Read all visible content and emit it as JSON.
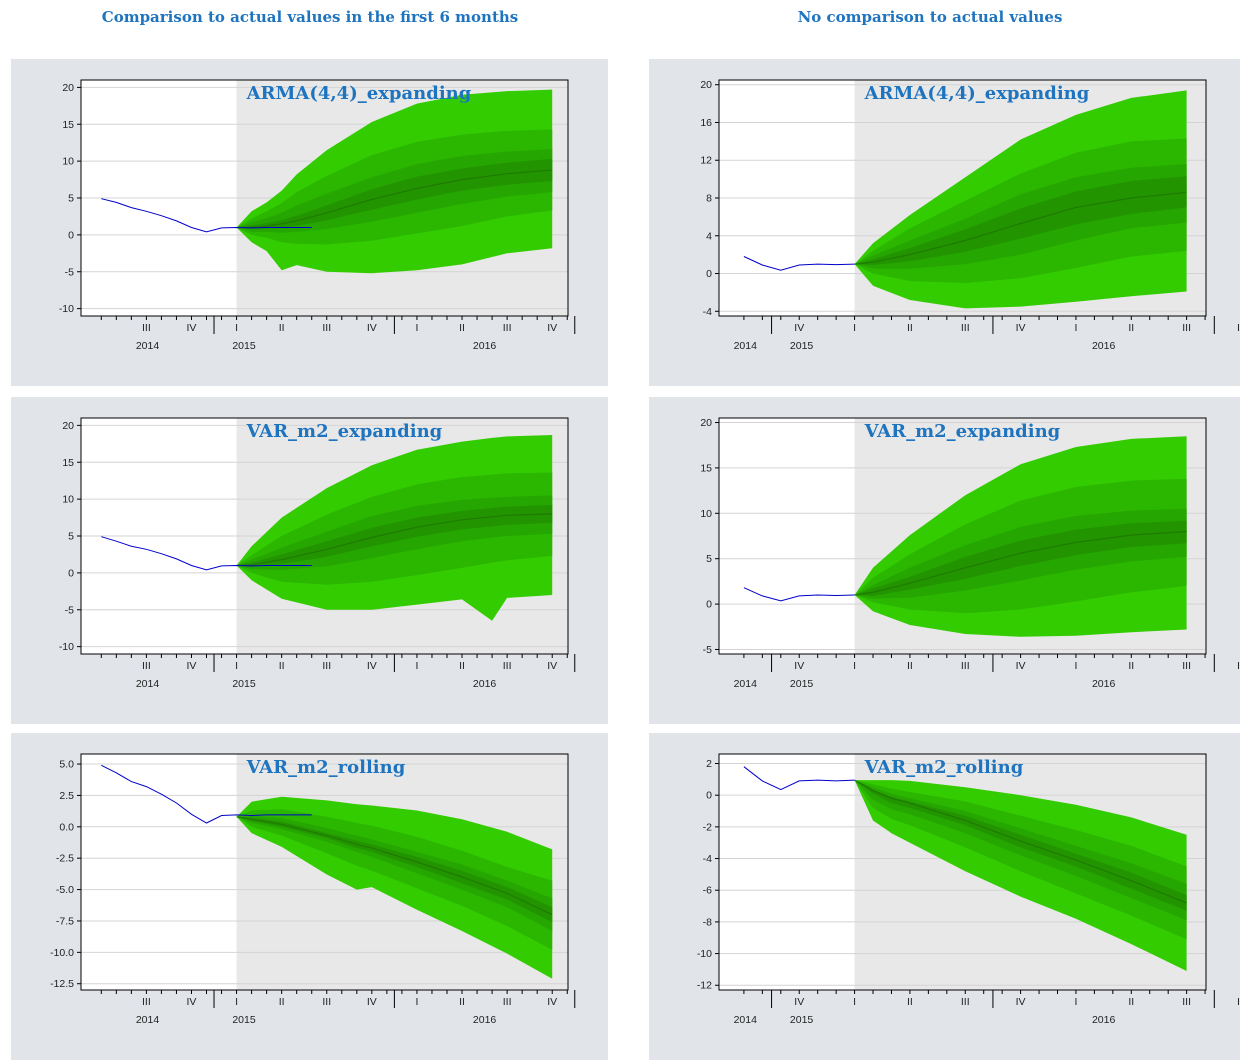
{
  "column_titles": {
    "left": "Comparison to actual values in the first 6 months",
    "right": "No comparison to actual values"
  },
  "colors": {
    "panel_bg": "#e1e5ea",
    "forecast_bg": "#e8e8e8",
    "fan_bands": [
      "#33cc00",
      "#2bb600",
      "#26a600",
      "#229400"
    ],
    "median": "#1f7a00",
    "actual_line": "#0000cc",
    "title": "#1f74c0"
  },
  "chart_data": [
    {
      "id": "left-arma",
      "type": "area",
      "title": "ARMA(4,4)_expanding",
      "x_start": "2014-II",
      "forecast_start": "2014-IV",
      "quarters_shown": 11,
      "quarter_ticks": [
        "III",
        "IV",
        "I",
        "II",
        "III",
        "IV",
        "I",
        "II",
        "III",
        "IV"
      ],
      "year_labels": [
        "2014",
        "2015",
        "2016"
      ],
      "ylim": [
        -11,
        21
      ],
      "yticks": [
        -10,
        -5,
        0,
        5,
        10,
        15,
        20
      ],
      "actual_x": [
        0,
        0.333,
        0.667,
        1,
        1.333,
        1.667,
        2,
        2.333,
        2.667,
        3,
        3.333,
        3.667,
        4,
        4.333,
        4.667
      ],
      "actual_y": [
        4.9,
        4.4,
        3.7,
        3.2,
        2.6,
        1.9,
        1.0,
        0.4,
        0.95,
        1.0,
        0.95,
        1.0,
        1.0,
        1.0,
        1.0
      ],
      "fan_x": [
        3,
        3.333,
        3.667,
        4,
        4.333,
        5,
        6,
        7,
        8,
        9,
        10
      ],
      "median": [
        1.0,
        1.0,
        1.2,
        1.5,
        1.9,
        3.0,
        4.8,
        6.3,
        7.5,
        8.3,
        8.8
      ],
      "bands": [
        {
          "lower": [
            1.0,
            -1.0,
            -2.2,
            -4.8,
            -4.1,
            -5.0,
            -5.2,
            -4.8,
            -4.0,
            -2.5,
            -1.8
          ],
          "upper": [
            1.0,
            3.2,
            4.4,
            6.0,
            8.2,
            11.5,
            15.3,
            17.8,
            19.0,
            19.5,
            19.7
          ]
        },
        {
          "lower": [
            1.0,
            0.0,
            -0.4,
            -1.0,
            -1.2,
            -1.3,
            -0.8,
            0.2,
            1.2,
            2.5,
            3.3
          ],
          "upper": [
            1.0,
            2.2,
            3.2,
            4.3,
            5.8,
            8.0,
            10.8,
            12.6,
            13.6,
            14.1,
            14.3
          ]
        },
        {
          "lower": [
            1.0,
            0.4,
            0.4,
            0.3,
            0.4,
            0.8,
            1.8,
            3.0,
            4.2,
            5.2,
            5.8
          ],
          "upper": [
            1.0,
            1.7,
            2.3,
            3.0,
            4.0,
            5.6,
            7.8,
            9.6,
            10.7,
            11.3,
            11.6
          ]
        },
        {
          "lower": [
            1.0,
            0.8,
            0.9,
            1.0,
            1.2,
            2.0,
            3.4,
            4.8,
            6.0,
            6.8,
            7.3
          ],
          "upper": [
            1.0,
            1.3,
            1.6,
            2.0,
            2.6,
            4.0,
            6.2,
            7.9,
            9.0,
            9.8,
            10.3
          ]
        }
      ]
    },
    {
      "id": "right-arma",
      "type": "area",
      "title": "ARMA(4,4)_expanding",
      "x_start": "2014-IV",
      "forecast_start": "2015-II",
      "quarters_shown": 9,
      "quarter_ticks": [
        "IV",
        "I",
        "II",
        "III",
        "IV",
        "I",
        "II",
        "III",
        "IV"
      ],
      "year_labels": [
        "2014",
        "2015",
        "2016"
      ],
      "ylim": [
        -4.5,
        20.5
      ],
      "yticks": [
        -4,
        0,
        4,
        8,
        12,
        16,
        20
      ],
      "actual_x": [
        0,
        0.333,
        0.667,
        1,
        1.333,
        1.667,
        2
      ],
      "actual_y": [
        1.8,
        0.9,
        0.35,
        0.9,
        1.0,
        0.95,
        1.0
      ],
      "fan_x": [
        2,
        2.333,
        3,
        4,
        5,
        6,
        7,
        8
      ],
      "median": [
        1.0,
        1.2,
        2.0,
        3.5,
        5.3,
        7.0,
        8.0,
        8.6
      ],
      "bands": [
        {
          "lower": [
            1.0,
            -1.3,
            -2.8,
            -3.7,
            -3.5,
            -3.0,
            -2.4,
            -1.9
          ],
          "upper": [
            1.0,
            3.2,
            6.2,
            10.2,
            14.2,
            16.8,
            18.6,
            19.4
          ]
        },
        {
          "lower": [
            1.0,
            0.0,
            -0.8,
            -1.0,
            -0.5,
            0.6,
            1.8,
            2.4
          ],
          "upper": [
            1.0,
            2.4,
            4.8,
            7.7,
            10.6,
            12.8,
            14.0,
            14.3
          ]
        },
        {
          "lower": [
            1.0,
            0.5,
            0.5,
            1.0,
            2.0,
            3.5,
            4.8,
            5.4
          ],
          "upper": [
            1.0,
            1.9,
            3.5,
            5.8,
            8.4,
            10.2,
            11.2,
            11.6
          ]
        },
        {
          "lower": [
            1.0,
            0.9,
            1.3,
            2.3,
            3.7,
            5.2,
            6.3,
            7.0
          ],
          "upper": [
            1.0,
            1.5,
            2.7,
            4.7,
            6.9,
            8.7,
            9.8,
            10.3
          ]
        }
      ]
    },
    {
      "id": "left-var-expanding",
      "type": "area",
      "title": "VAR_m2_expanding",
      "x_start": "2014-II",
      "forecast_start": "2014-IV",
      "quarters_shown": 11,
      "quarter_ticks": [
        "III",
        "IV",
        "I",
        "II",
        "III",
        "IV",
        "I",
        "II",
        "III",
        "IV"
      ],
      "year_labels": [
        "2014",
        "2015",
        "2016"
      ],
      "ylim": [
        -11,
        21
      ],
      "yticks": [
        -10,
        -5,
        0,
        5,
        10,
        15,
        20
      ],
      "actual_x": [
        0,
        0.333,
        0.667,
        1,
        1.333,
        1.667,
        2,
        2.333,
        2.667,
        3,
        3.333,
        3.667,
        4,
        4.333,
        4.667
      ],
      "actual_y": [
        4.9,
        4.3,
        3.6,
        3.2,
        2.6,
        1.9,
        1.0,
        0.4,
        0.95,
        1.0,
        0.95,
        1.0,
        1.0,
        1.0,
        1.0
      ],
      "fan_x": [
        3,
        3.333,
        4,
        5,
        6,
        7,
        8,
        8.667,
        9,
        10
      ],
      "median": [
        1.0,
        1.1,
        1.8,
        3.2,
        4.8,
        6.2,
        7.2,
        7.6,
        7.8,
        8.0
      ],
      "bands": [
        {
          "lower": [
            1.0,
            -1.0,
            -3.5,
            -5.0,
            -5.0,
            -4.3,
            -3.6,
            -6.5,
            -3.4,
            -3.0
          ],
          "upper": [
            1.0,
            3.6,
            7.5,
            11.5,
            14.6,
            16.7,
            17.8,
            18.3,
            18.5,
            18.7
          ]
        },
        {
          "lower": [
            1.0,
            0.0,
            -1.2,
            -1.6,
            -1.2,
            -0.3,
            0.7,
            1.4,
            1.7,
            2.3
          ],
          "upper": [
            1.0,
            2.4,
            5.0,
            7.9,
            10.3,
            12.0,
            13.0,
            13.3,
            13.5,
            13.6
          ]
        },
        {
          "lower": [
            1.0,
            0.5,
            0.4,
            0.9,
            2.0,
            3.2,
            4.3,
            4.8,
            5.0,
            5.3
          ],
          "upper": [
            1.0,
            1.8,
            3.4,
            5.6,
            7.7,
            9.1,
            9.9,
            10.2,
            10.3,
            10.5
          ]
        },
        {
          "lower": [
            1.0,
            0.8,
            1.2,
            2.2,
            3.6,
            4.9,
            5.9,
            6.3,
            6.5,
            6.8
          ],
          "upper": [
            1.0,
            1.4,
            2.5,
            4.3,
            6.1,
            7.5,
            8.4,
            8.8,
            9.0,
            9.2
          ]
        }
      ]
    },
    {
      "id": "right-var-expanding",
      "type": "area",
      "title": "VAR_m2_expanding",
      "x_start": "2014-IV",
      "forecast_start": "2015-II",
      "quarters_shown": 9,
      "quarter_ticks": [
        "IV",
        "I",
        "II",
        "III",
        "IV",
        "I",
        "II",
        "III",
        "IV"
      ],
      "year_labels": [
        "2014",
        "2015",
        "2016"
      ],
      "ylim": [
        -5.5,
        20.5
      ],
      "yticks": [
        -5,
        0,
        5,
        10,
        15,
        20
      ],
      "actual_x": [
        0,
        0.333,
        0.667,
        1,
        1.333,
        1.667,
        2
      ],
      "actual_y": [
        1.8,
        0.9,
        0.35,
        0.9,
        1.0,
        0.95,
        1.0
      ],
      "fan_x": [
        2,
        2.333,
        3,
        4,
        5,
        6,
        7,
        8
      ],
      "median": [
        1.0,
        1.3,
        2.3,
        4.0,
        5.6,
        6.8,
        7.6,
        8.0
      ],
      "bands": [
        {
          "lower": [
            1.0,
            -0.8,
            -2.3,
            -3.3,
            -3.6,
            -3.5,
            -3.1,
            -2.8
          ],
          "upper": [
            1.0,
            4.0,
            7.6,
            12.0,
            15.4,
            17.3,
            18.2,
            18.5
          ]
        },
        {
          "lower": [
            1.0,
            0.2,
            -0.6,
            -1.0,
            -0.6,
            0.3,
            1.3,
            2.0
          ],
          "upper": [
            1.0,
            2.9,
            5.5,
            8.8,
            11.4,
            12.9,
            13.6,
            13.8
          ]
        },
        {
          "lower": [
            1.0,
            0.6,
            0.7,
            1.5,
            2.6,
            3.8,
            4.7,
            5.2
          ],
          "upper": [
            1.0,
            2.1,
            4.0,
            6.5,
            8.5,
            9.7,
            10.3,
            10.5
          ]
        },
        {
          "lower": [
            1.0,
            0.9,
            1.6,
            2.8,
            4.2,
            5.4,
            6.3,
            6.7
          ],
          "upper": [
            1.0,
            1.7,
            3.0,
            5.2,
            7.0,
            8.2,
            8.9,
            9.2
          ]
        }
      ]
    },
    {
      "id": "left-var-rolling",
      "type": "area",
      "title": "VAR_m2_rolling",
      "x_start": "2014-II",
      "forecast_start": "2014-IV",
      "quarters_shown": 11,
      "quarter_ticks": [
        "III",
        "IV",
        "I",
        "II",
        "III",
        "IV",
        "I",
        "II",
        "III",
        "IV"
      ],
      "year_labels": [
        "2014",
        "2015",
        "2016"
      ],
      "ylim": [
        -13,
        5.8
      ],
      "yticks": [
        -12.5,
        -10.0,
        -7.5,
        -5.0,
        -2.5,
        0.0,
        2.5,
        5.0
      ],
      "actual_x": [
        0,
        0.333,
        0.667,
        1,
        1.333,
        1.667,
        2,
        2.333,
        2.667,
        3,
        3.333,
        3.667,
        4,
        4.333,
        4.667
      ],
      "actual_y": [
        4.9,
        4.3,
        3.6,
        3.2,
        2.6,
        1.9,
        1.0,
        0.3,
        0.9,
        0.95,
        0.9,
        0.95,
        0.95,
        0.95,
        0.95
      ],
      "fan_x": [
        3,
        3.333,
        4,
        5,
        5.667,
        6,
        7,
        8,
        9,
        10
      ],
      "median": [
        0.8,
        0.6,
        0.2,
        -0.7,
        -1.4,
        -1.7,
        -2.8,
        -4.0,
        -5.3,
        -7.0
      ],
      "bands": [
        {
          "lower": [
            0.8,
            -0.5,
            -1.6,
            -3.8,
            -5.0,
            -4.8,
            -6.6,
            -8.3,
            -10.1,
            -12.1
          ],
          "upper": [
            0.8,
            2.0,
            2.4,
            2.1,
            1.8,
            1.7,
            1.3,
            0.6,
            -0.4,
            -1.8
          ]
        },
        {
          "lower": [
            0.8,
            0.0,
            -0.7,
            -2.1,
            -3.1,
            -3.5,
            -4.9,
            -6.3,
            -7.9,
            -9.8
          ],
          "upper": [
            0.8,
            1.3,
            1.4,
            0.8,
            0.3,
            0.1,
            -0.8,
            -1.9,
            -3.2,
            -4.3
          ]
        },
        {
          "lower": [
            0.8,
            0.3,
            -0.2,
            -1.2,
            -2.0,
            -2.4,
            -3.7,
            -5.0,
            -6.4,
            -8.3
          ],
          "upper": [
            0.8,
            0.9,
            0.7,
            -0.1,
            -0.7,
            -1.0,
            -2.0,
            -3.0,
            -4.3,
            -5.7
          ]
        },
        {
          "lower": [
            0.8,
            0.45,
            0.0,
            -0.9,
            -1.7,
            -2.0,
            -3.2,
            -4.5,
            -5.8,
            -7.6
          ],
          "upper": [
            0.8,
            0.75,
            0.4,
            -0.5,
            -1.1,
            -1.4,
            -2.4,
            -3.5,
            -4.8,
            -6.4
          ]
        }
      ]
    },
    {
      "id": "right-var-rolling",
      "type": "area",
      "title": "VAR_m2_rolling",
      "x_start": "2014-IV",
      "forecast_start": "2015-II",
      "quarters_shown": 9,
      "quarter_ticks": [
        "IV",
        "I",
        "II",
        "III",
        "IV",
        "I",
        "II",
        "III",
        "IV"
      ],
      "year_labels": [
        "2014",
        "2015",
        "2016"
      ],
      "ylim": [
        -12.3,
        2.6
      ],
      "yticks": [
        -12,
        -10,
        -8,
        -6,
        -4,
        -2,
        0,
        2
      ],
      "actual_x": [
        0,
        0.333,
        0.667,
        1,
        1.333,
        1.667,
        2
      ],
      "actual_y": [
        1.8,
        0.9,
        0.35,
        0.9,
        0.95,
        0.9,
        0.95
      ],
      "fan_x": [
        2,
        2.333,
        2.667,
        3,
        4,
        5,
        6,
        7,
        8
      ],
      "median": [
        0.95,
        0.3,
        -0.2,
        -0.5,
        -1.6,
        -2.9,
        -4.1,
        -5.4,
        -6.8
      ],
      "bands": [
        {
          "lower": [
            0.95,
            -1.6,
            -2.4,
            -3.0,
            -4.8,
            -6.4,
            -7.8,
            -9.4,
            -11.1
          ],
          "upper": [
            0.95,
            0.95,
            0.95,
            0.9,
            0.5,
            0.0,
            -0.6,
            -1.4,
            -2.5
          ]
        },
        {
          "lower": [
            0.95,
            -0.8,
            -1.5,
            -1.9,
            -3.3,
            -4.8,
            -6.2,
            -7.6,
            -9.1
          ],
          "upper": [
            0.95,
            0.7,
            0.4,
            0.2,
            -0.4,
            -1.3,
            -2.2,
            -3.2,
            -4.5
          ]
        },
        {
          "lower": [
            0.95,
            -0.3,
            -0.9,
            -1.2,
            -2.4,
            -3.8,
            -5.1,
            -6.5,
            -7.9
          ],
          "upper": [
            0.95,
            0.5,
            0.1,
            -0.2,
            -1.0,
            -2.1,
            -3.2,
            -4.3,
            -5.6
          ]
        },
        {
          "lower": [
            0.95,
            0.1,
            -0.5,
            -0.8,
            -1.9,
            -3.3,
            -4.5,
            -5.9,
            -7.3
          ],
          "upper": [
            0.95,
            0.35,
            -0.1,
            -0.4,
            -1.3,
            -2.5,
            -3.7,
            -4.9,
            -6.3
          ]
        }
      ]
    }
  ]
}
